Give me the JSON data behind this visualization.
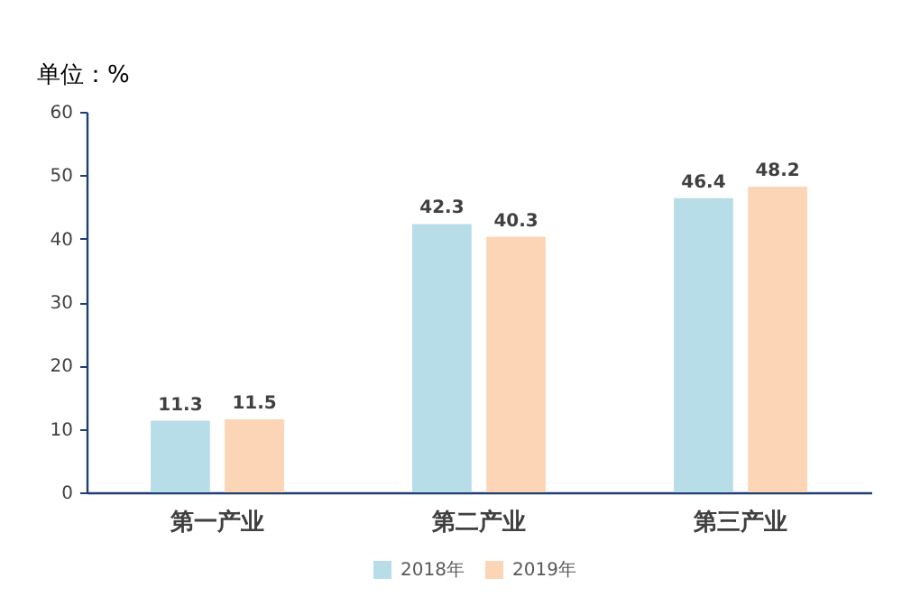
{
  "chart_data": {
    "type": "bar",
    "ylabel": "单位：%",
    "categories": [
      "第一产业",
      "第二产业",
      "第三产业"
    ],
    "series": [
      {
        "name": "2018年",
        "color": "#b7dde8",
        "values": [
          11.3,
          42.3,
          46.4
        ]
      },
      {
        "name": "2019年",
        "color": "#fbd5b5",
        "values": [
          11.5,
          40.3,
          48.2
        ]
      }
    ],
    "ylim": [
      0,
      60
    ],
    "yticks": [
      0,
      10,
      20,
      30,
      40,
      50,
      60
    ],
    "grid": false,
    "legend": "bottom",
    "data_labels": true
  }
}
